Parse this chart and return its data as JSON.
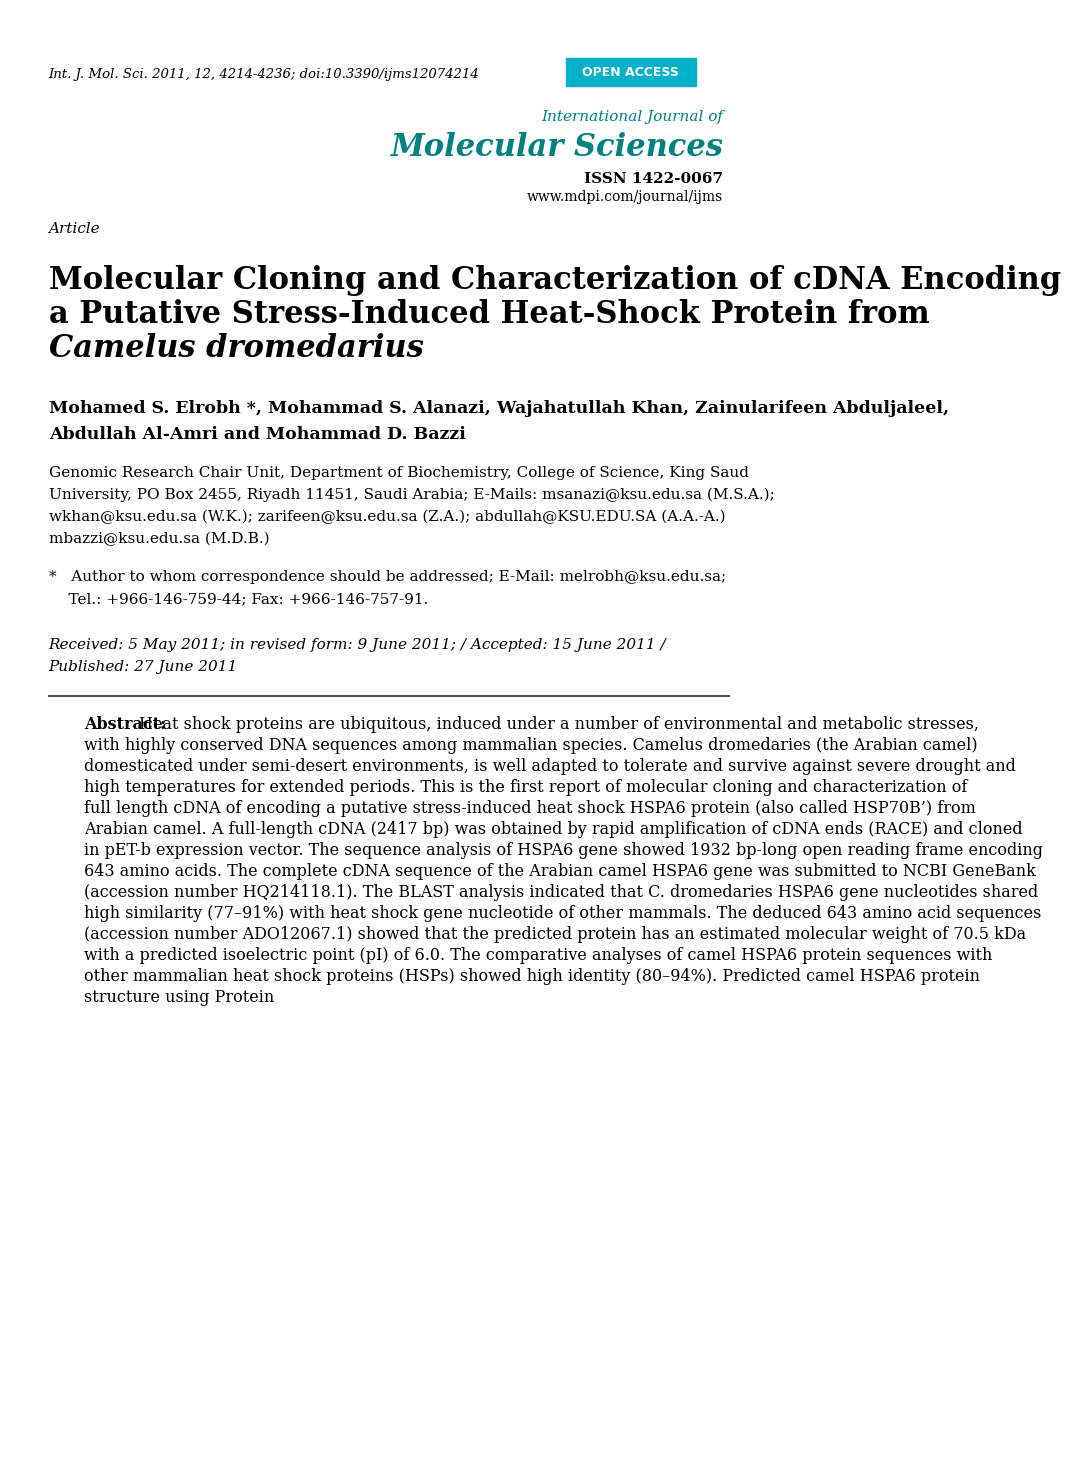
{
  "background_color": "#ffffff",
  "header_citation": "Int. J. Mol. Sci. 2011, 12, 4214-4236; doi:10.3390/ijms12074214",
  "open_access_text": "OPEN ACCESS",
  "open_access_bg": "#00b0c8",
  "open_access_color": "#ffffff",
  "journal_name_small": "International Journal of",
  "journal_name_large": "Molecular Sciences",
  "journal_issn": "ISSN 1422-0067",
  "journal_url": "www.mdpi.com/journal/ijms",
  "journal_color": "#008080",
  "article_label": "Article",
  "title_line1": "Molecular Cloning and Characterization of cDNA Encoding",
  "title_line2": "a Putative Stress-Induced Heat-Shock Protein from",
  "title_line3_italic": "Camelus dromedarius",
  "authors_line1": "Mohamed S. Elrobh *, Mohammad S. Alanazi, Wajahatullah Khan, Zainularifeen Abduljaleel,",
  "authors_line2": "Abdullah Al-Amri and Mohammad D. Bazzi",
  "affiliation_lines": [
    "Genomic Research Chair Unit, Department of Biochemistry, College of Science, King Saud",
    "University, PO Box 2455, Riyadh 11451, Saudi Arabia; E-Mails: msanazi@ksu.edu.sa (M.S.A.);",
    "wkhan@ksu.edu.sa (W.K.); zarifeen@ksu.edu.sa (Z.A.); abdullah@KSU.EDU.SA (A.A.-A.)",
    "mbazzi@ksu.edu.sa (M.D.B.)"
  ],
  "correspondence_lines": [
    "*   Author to whom correspondence should be addressed; E-Mail: melrobh@ksu.edu.sa;",
    "    Tel.: +966-146-759-44; Fax: +966-146-757-91."
  ],
  "dates_line1": "Received: 5 May 2011; in revised form: 9 June 2011; / Accepted: 15 June 2011 /",
  "dates_line2": "Published: 27 June 2011",
  "abstract_label": "Abstract:",
  "abstract_text": "Heat shock proteins are ubiquitous, induced under a number of environmental and metabolic stresses, with highly conserved DNA sequences among mammalian species. Camelus dromedaries (the Arabian camel) domesticated under semi-desert environments, is well adapted to tolerate and survive against severe drought and high temperatures for extended periods. This is the first report of molecular cloning and characterization of full length cDNA of encoding a putative stress-induced heat shock HSPA6 protein (also called HSP70B’) from Arabian camel. A full-length cDNA (2417 bp) was obtained by rapid amplification of cDNA ends (RACE) and cloned in pET-b expression vector. The sequence analysis of HSPA6 gene showed 1932 bp-long open reading frame encoding 643 amino acids. The complete cDNA sequence of the Arabian camel HSPA6 gene was submitted to NCBI GeneBank (accession number HQ214118.1). The BLAST analysis indicated that C. dromedaries HSPA6 gene nucleotides shared high similarity (77–91%) with heat shock gene nucleotide of other mammals. The deduced 643 amino acid sequences (accession number ADO12067.1) showed that the predicted protein has an estimated molecular weight of 70.5 kDa with a predicted isoelectric point (pI) of 6.0. The comparative analyses of camel HSPA6 protein sequences with other mammalian heat shock proteins (HSPs) showed high identity (80–94%). Predicted camel HSPA6 protein structure using Protein"
}
